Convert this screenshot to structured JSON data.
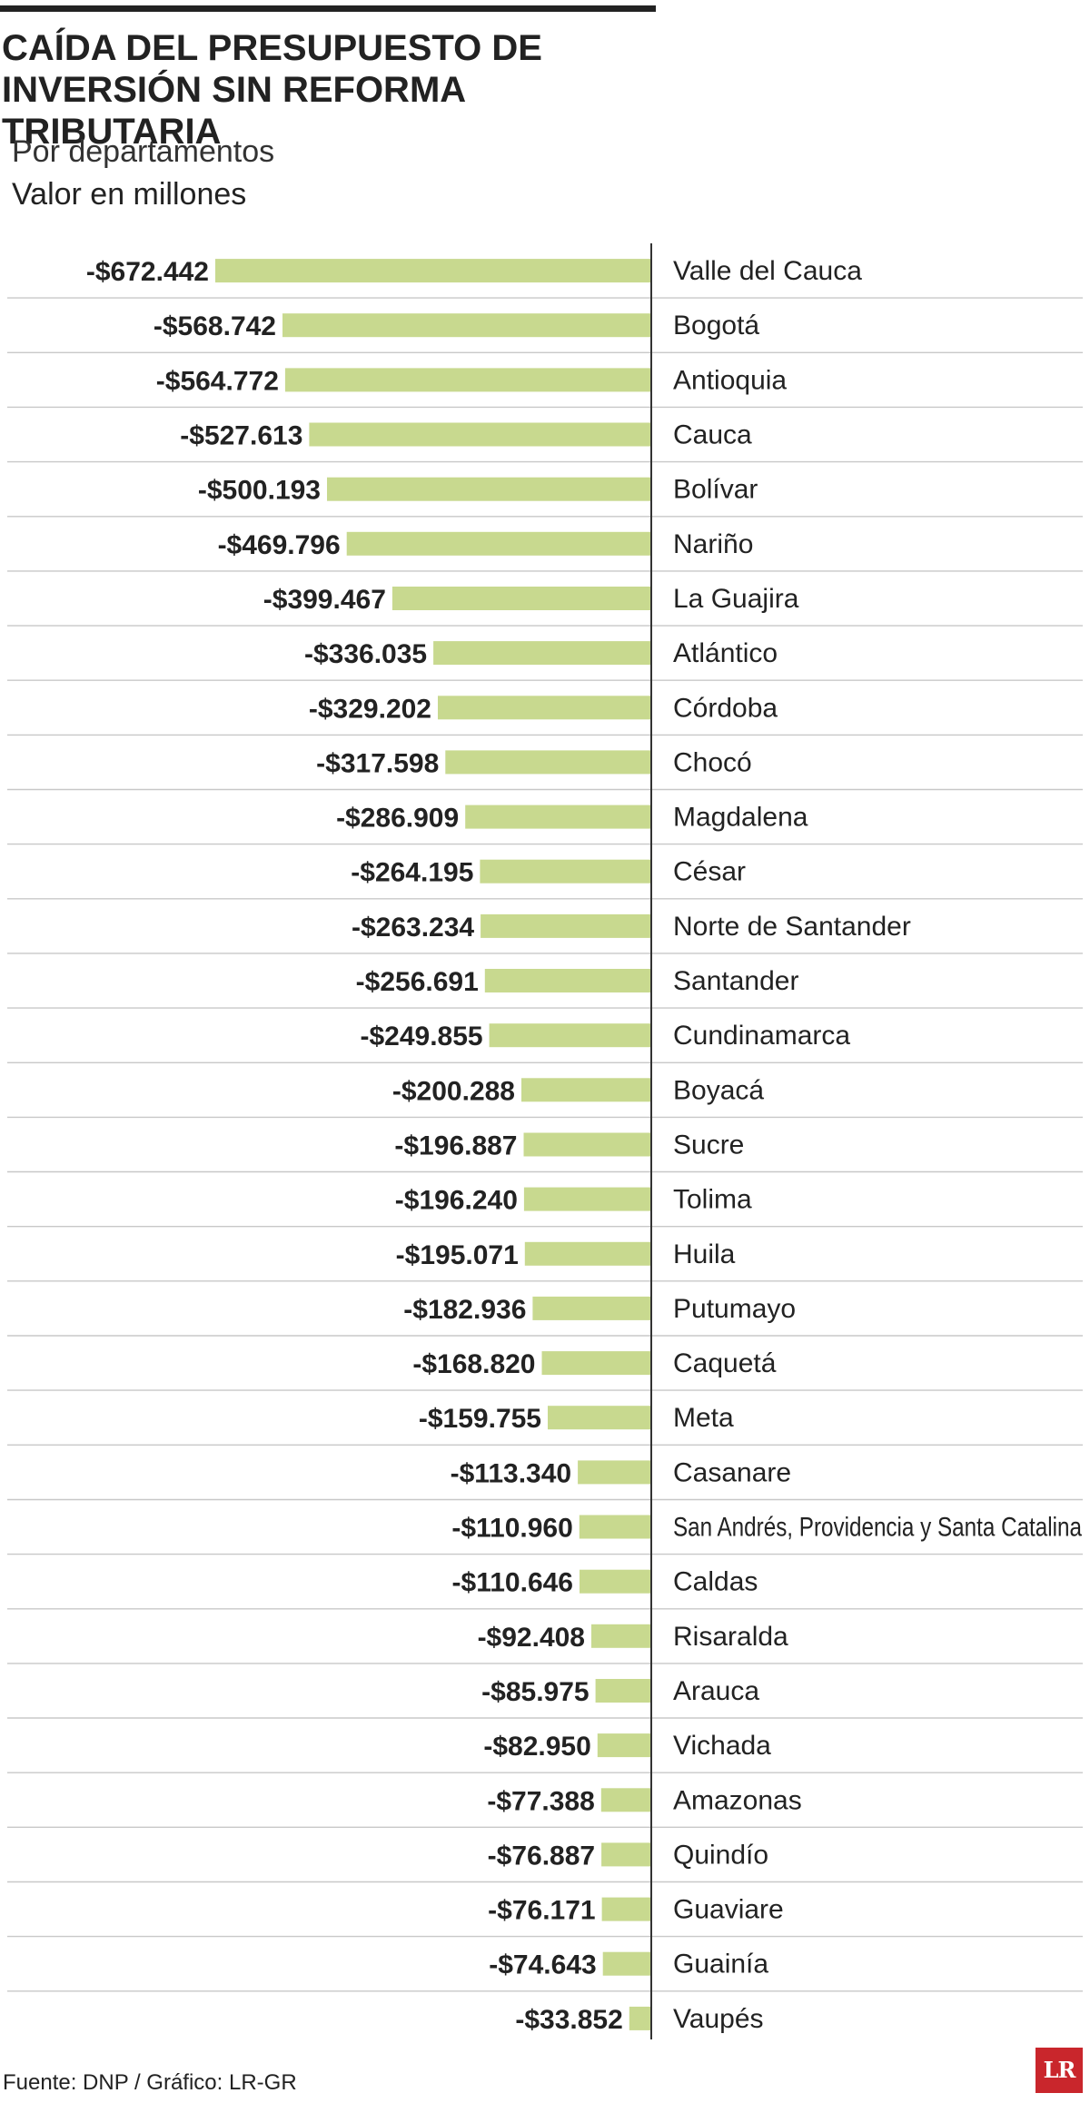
{
  "header": {
    "title": "CAÍDA DEL PRESUPUESTO DE INVERSIÓN SIN REFORMA TRIBUTARIA",
    "subtitle": "Por departamentos",
    "unit": "Valor en millones"
  },
  "footer": {
    "source": "Fuente: DNP / Gráfico: LR-GR"
  },
  "logo": {
    "text": "LR"
  },
  "colors": {
    "bar": "#c8d98f",
    "gridline": "#c8c8c8",
    "axis": "#333333",
    "logo": "#c9262c"
  },
  "chart_data": {
    "type": "bar",
    "orientation": "horizontal",
    "title": "CAÍDA DEL PRESUPUESTO DE INVERSIÓN SIN REFORMA TRIBUTARIA",
    "subtitle": "Por departamentos",
    "unit": "Valor en millones",
    "xlim": [
      -672442,
      0
    ],
    "grid": true,
    "legend": "none",
    "categories": [
      "Valle del Cauca",
      "Bogotá",
      "Antioquia",
      "Cauca",
      "Bolívar",
      "Nariño",
      "La Guajira",
      "Atlántico",
      "Córdoba",
      "Chocó",
      "Magdalena",
      "César",
      "Norte de Santander",
      "Santander",
      "Cundinamarca",
      "Boyacá",
      "Sucre",
      "Tolima",
      "Huila",
      "Putumayo",
      "Caquetá",
      "Meta",
      "Casanare",
      "San Andrés, Providencia y Santa Catalina",
      "Caldas",
      "Risaralda",
      "Arauca",
      "Vichada",
      "Amazonas",
      "Quindío",
      "Guaviare",
      "Guainía",
      "Vaupés"
    ],
    "values": [
      -672442,
      -568742,
      -564772,
      -527613,
      -500193,
      -469796,
      -399467,
      -336035,
      -329202,
      -317598,
      -286909,
      -264195,
      -263234,
      -256691,
      -249855,
      -200288,
      -196887,
      -196240,
      -195071,
      -182936,
      -168820,
      -159755,
      -113340,
      -110960,
      -110646,
      -92408,
      -85975,
      -82950,
      -77388,
      -76887,
      -76171,
      -74643,
      -33852
    ],
    "labels": [
      "-$672.442",
      "-$568.742",
      "-$564.772",
      "-$527.613",
      "-$500.193",
      "-$469.796",
      "-$399.467",
      "-$336.035",
      "-$329.202",
      "-$317.598",
      "-$286.909",
      "-$264.195",
      "-$263.234",
      "-$256.691",
      "-$249.855",
      "-$200.288",
      "-$196.887",
      "-$196.240",
      "-$195.071",
      "-$182.936",
      "-$168.820",
      "-$159.755",
      "-$113.340",
      "-$110.960",
      "-$110.646",
      "-$92.408",
      "-$85.975",
      "-$82.950",
      "-$77.388",
      "-$76.887",
      "-$76.171",
      "-$74.643",
      "-$33.852"
    ]
  }
}
